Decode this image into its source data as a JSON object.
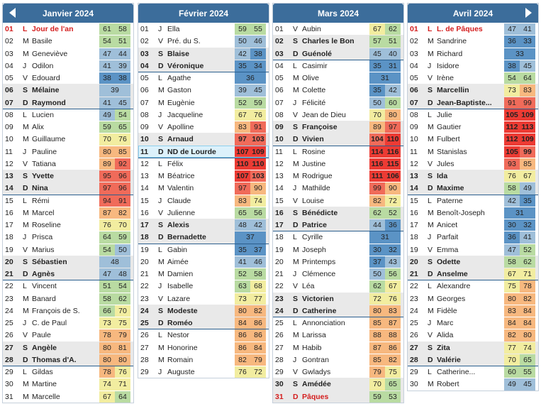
{
  "months": [
    {
      "title": "Janvier 2024",
      "days": [
        [
          "01",
          "L",
          "Jour de l'an",
          "61",
          "58"
        ],
        [
          "02",
          "M",
          "Basile",
          "54",
          "51"
        ],
        [
          "03",
          "M",
          "Geneviève",
          "47",
          "44"
        ],
        [
          "04",
          "J",
          "Odilon",
          "41",
          "39"
        ],
        [
          "05",
          "V",
          "Edouard",
          "38",
          "38"
        ],
        [
          "06",
          "S",
          "Mélaine",
          "39",
          ""
        ],
        [
          "07",
          "D",
          "Raymond",
          "41",
          "45"
        ],
        [
          "08",
          "L",
          "Lucien",
          "49",
          "54"
        ],
        [
          "09",
          "M",
          "Alix",
          "59",
          "65"
        ],
        [
          "10",
          "M",
          "Guillaume",
          "70",
          "76"
        ],
        [
          "11",
          "J",
          "Pauline",
          "80",
          "85"
        ],
        [
          "12",
          "V",
          "Tatiana",
          "89",
          "92"
        ],
        [
          "13",
          "S",
          "Yvette",
          "95",
          "96"
        ],
        [
          "14",
          "D",
          "Nina",
          "97",
          "96"
        ],
        [
          "15",
          "L",
          "Rémi",
          "94",
          "91"
        ],
        [
          "16",
          "M",
          "Marcel",
          "87",
          "82"
        ],
        [
          "17",
          "M",
          "Roseline",
          "76",
          "70"
        ],
        [
          "18",
          "J",
          "Prisca",
          "64",
          "59"
        ],
        [
          "19",
          "V",
          "Marius",
          "54",
          "50"
        ],
        [
          "20",
          "S",
          "Sébastien",
          "48",
          ""
        ],
        [
          "21",
          "D",
          "Agnès",
          "47",
          "48"
        ],
        [
          "22",
          "L",
          "Vincent",
          "51",
          "54"
        ],
        [
          "23",
          "M",
          "Banard",
          "58",
          "62"
        ],
        [
          "24",
          "M",
          "François de S.",
          "66",
          "70"
        ],
        [
          "25",
          "J",
          "C. de Paul",
          "73",
          "75"
        ],
        [
          "26",
          "V",
          "Paule",
          "78",
          "79"
        ],
        [
          "27",
          "S",
          "Angèle",
          "80",
          "81"
        ],
        [
          "28",
          "D",
          "Thomas d'A.",
          "80",
          "80"
        ],
        [
          "29",
          "L",
          "Gildas",
          "78",
          "76"
        ],
        [
          "30",
          "M",
          "Martine",
          "74",
          "71"
        ],
        [
          "31",
          "M",
          "Marcelle",
          "67",
          "64"
        ]
      ]
    },
    {
      "title": "Février 2024",
      "days": [
        [
          "01",
          "J",
          "Ella",
          "59",
          "55"
        ],
        [
          "02",
          "V",
          "Pré. du S.",
          "50",
          "46"
        ],
        [
          "03",
          "S",
          "Blaise",
          "42",
          "38"
        ],
        [
          "04",
          "D",
          "Véronique",
          "35",
          "34"
        ],
        [
          "05",
          "L",
          "Agathe",
          "36",
          ""
        ],
        [
          "06",
          "M",
          "Gaston",
          "39",
          "45"
        ],
        [
          "07",
          "M",
          "Eugènie",
          "52",
          "59"
        ],
        [
          "08",
          "J",
          "Jacqueline",
          "67",
          "76"
        ],
        [
          "09",
          "V",
          "Apolline",
          "83",
          "91"
        ],
        [
          "10",
          "S",
          "Arnaud",
          "97",
          "103"
        ],
        [
          "11",
          "D",
          "ND de Lourde",
          "107",
          "109"
        ],
        [
          "12",
          "L",
          "Félix",
          "110",
          "110"
        ],
        [
          "13",
          "M",
          "Béatrice",
          "107",
          "103"
        ],
        [
          "14",
          "M",
          "Valentin",
          "97",
          "90"
        ],
        [
          "15",
          "J",
          "Claude",
          "83",
          "74"
        ],
        [
          "16",
          "V",
          "Julienne",
          "65",
          "56"
        ],
        [
          "17",
          "S",
          "Alexis",
          "48",
          "42"
        ],
        [
          "18",
          "D",
          "Bernadette",
          "37",
          ""
        ],
        [
          "19",
          "L",
          "Gabin",
          "35",
          "37"
        ],
        [
          "20",
          "M",
          "Aimée",
          "41",
          "46"
        ],
        [
          "21",
          "M",
          "Damien",
          "52",
          "58"
        ],
        [
          "22",
          "J",
          "Isabelle",
          "63",
          "68"
        ],
        [
          "23",
          "V",
          "Lazare",
          "73",
          "77"
        ],
        [
          "24",
          "S",
          "Modeste",
          "80",
          "82"
        ],
        [
          "25",
          "D",
          "Roméo",
          "84",
          "86"
        ],
        [
          "26",
          "L",
          "Nestor",
          "86",
          "86"
        ],
        [
          "27",
          "M",
          "Honorine",
          "86",
          "84"
        ],
        [
          "28",
          "M",
          "Romain",
          "82",
          "79"
        ],
        [
          "29",
          "J",
          "Auguste",
          "76",
          "72"
        ]
      ]
    },
    {
      "title": "Mars 2024",
      "days": [
        [
          "01",
          "V",
          "Aubin",
          "67",
          "62"
        ],
        [
          "02",
          "S",
          "Charles le Bon",
          "57",
          "51"
        ],
        [
          "03",
          "D",
          "Guénolé",
          "45",
          "40"
        ],
        [
          "04",
          "L",
          "Casimir",
          "35",
          "31"
        ],
        [
          "05",
          "M",
          "Olive",
          "31",
          ""
        ],
        [
          "06",
          "M",
          "Colette",
          "35",
          "42"
        ],
        [
          "07",
          "J",
          "Félicité",
          "50",
          "60"
        ],
        [
          "08",
          "V",
          "Jean de Dieu",
          "70",
          "80"
        ],
        [
          "09",
          "S",
          "Françoise",
          "89",
          "97"
        ],
        [
          "10",
          "D",
          "Vivien",
          "104",
          "110"
        ],
        [
          "11",
          "L",
          "Rosine",
          "114",
          "116"
        ],
        [
          "12",
          "M",
          "Justine",
          "116",
          "115"
        ],
        [
          "13",
          "M",
          "Rodrigue",
          "111",
          "106"
        ],
        [
          "14",
          "J",
          "Mathilde",
          "99",
          "90"
        ],
        [
          "15",
          "V",
          "Louise",
          "82",
          "72"
        ],
        [
          "16",
          "S",
          "Bénédicte",
          "62",
          "52"
        ],
        [
          "17",
          "D",
          "Patrice",
          "44",
          "36"
        ],
        [
          "18",
          "L",
          "Cyrille",
          "31",
          ""
        ],
        [
          "19",
          "M",
          "Joseph",
          "30",
          "32"
        ],
        [
          "20",
          "M",
          "Printemps",
          "37",
          "43"
        ],
        [
          "21",
          "J",
          "Clémence",
          "50",
          "56"
        ],
        [
          "22",
          "V",
          "Léa",
          "62",
          "67"
        ],
        [
          "23",
          "S",
          "Victorien",
          "72",
          "76"
        ],
        [
          "24",
          "D",
          "Catherine",
          "80",
          "83"
        ],
        [
          "25",
          "L",
          "Annonciation",
          "85",
          "87"
        ],
        [
          "26",
          "M",
          "Larissa",
          "88",
          "88"
        ],
        [
          "27",
          "M",
          "Habib",
          "87",
          "86"
        ],
        [
          "28",
          "J",
          "Gontran",
          "85",
          "82"
        ],
        [
          "29",
          "V",
          "Gwladys",
          "79",
          "75"
        ],
        [
          "30",
          "S",
          "Amédée",
          "70",
          "65"
        ],
        [
          "31",
          "D",
          "Pâques",
          "59",
          "53"
        ]
      ]
    },
    {
      "title": "Avril 2024",
      "days": [
        [
          "01",
          "L",
          "L. de Pâques",
          "47",
          "41"
        ],
        [
          "02",
          "M",
          "Sandrine",
          "36",
          "33"
        ],
        [
          "03",
          "M",
          "Richard",
          "33",
          ""
        ],
        [
          "04",
          "J",
          "Isidore",
          "38",
          "45"
        ],
        [
          "05",
          "V",
          "Irène",
          "54",
          "64"
        ],
        [
          "06",
          "S",
          "Marcellin",
          "73",
          "83"
        ],
        [
          "07",
          "D",
          "Jean-Baptiste...",
          "91",
          "99"
        ],
        [
          "08",
          "L",
          "Julie",
          "105",
          "109"
        ],
        [
          "09",
          "M",
          "Gautier",
          "112",
          "113"
        ],
        [
          "10",
          "M",
          "Fulbert",
          "112",
          "109"
        ],
        [
          "11",
          "M",
          "Stanislas",
          "105",
          "99"
        ],
        [
          "12",
          "V",
          "Jules",
          "93",
          "85"
        ],
        [
          "13",
          "S",
          "Ida",
          "76",
          "67"
        ],
        [
          "14",
          "D",
          "Maxime",
          "58",
          "49"
        ],
        [
          "15",
          "L",
          "Paterne",
          "42",
          "35"
        ],
        [
          "16",
          "M",
          "Benoît-Joseph",
          "31",
          ""
        ],
        [
          "17",
          "M",
          "Anicet",
          "30",
          "32"
        ],
        [
          "18",
          "J",
          "Parfait",
          "36",
          "41"
        ],
        [
          "19",
          "V",
          "Emma",
          "47",
          "52"
        ],
        [
          "20",
          "S",
          "Odette",
          "58",
          "62"
        ],
        [
          "21",
          "D",
          "Anselme",
          "67",
          "71"
        ],
        [
          "22",
          "L",
          "Alexandre",
          "75",
          "78"
        ],
        [
          "23",
          "M",
          "Georges",
          "80",
          "82"
        ],
        [
          "24",
          "M",
          "Fidèle",
          "83",
          "84"
        ],
        [
          "25",
          "J",
          "Marc",
          "84",
          "84"
        ],
        [
          "26",
          "V",
          "Alida",
          "82",
          "80"
        ],
        [
          "27",
          "S",
          "Zita",
          "77",
          "74"
        ],
        [
          "28",
          "D",
          "Valérie",
          "70",
          "65"
        ],
        [
          "29",
          "L",
          "Catherine...",
          "60",
          "55"
        ],
        [
          "30",
          "M",
          "Robert",
          "49",
          "45"
        ]
      ]
    }
  ],
  "holidays": {
    "0": [
      0
    ],
    "2": [
      30
    ],
    "3": [
      0
    ]
  },
  "highlight": {
    "1": [
      10
    ]
  },
  "colors": {
    "blue": "#5b93c5",
    "light_blue": "#9fbfd9",
    "green": "#b9dba2",
    "yellow": "#f2eda0",
    "orange": "#f7b87f",
    "red": "#f06b5a",
    "deep_red": "#ec3b34",
    "holiday_text": "#d41e1e"
  },
  "nav": {
    "prev_icon": "chevron-left-icon",
    "next_icon": "chevron-right-icon"
  }
}
